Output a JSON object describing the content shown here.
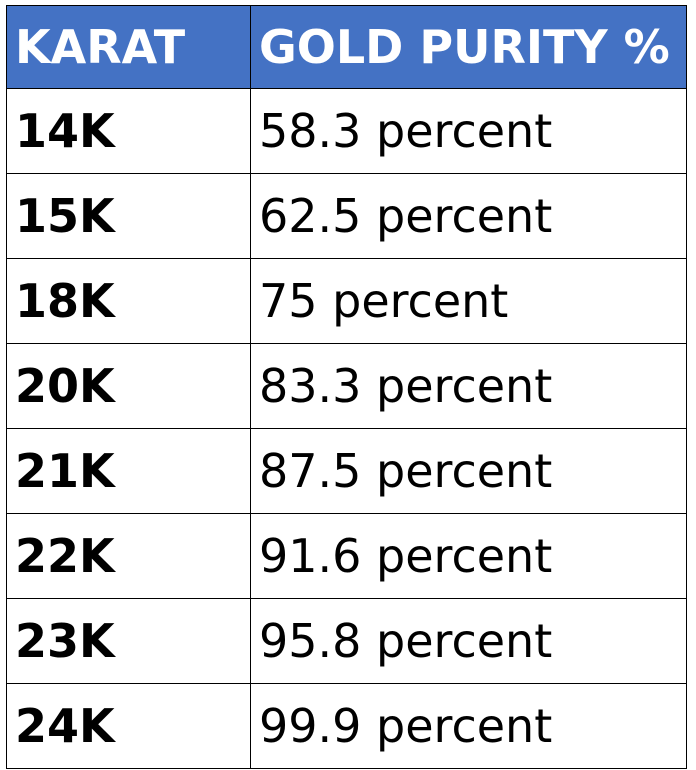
{
  "table": {
    "headers": [
      "KARAT",
      "GOLD PURITY %"
    ],
    "rows": [
      {
        "karat": "14K",
        "purity": "58.3 percent"
      },
      {
        "karat": "15K",
        "purity": "62.5 percent"
      },
      {
        "karat": "18K",
        "purity": "75 percent"
      },
      {
        "karat": "20K",
        "purity": "83.3 percent"
      },
      {
        "karat": "21K",
        "purity": "87.5 percent"
      },
      {
        "karat": "22K",
        "purity": "91.6 percent"
      },
      {
        "karat": "23K",
        "purity": "95.8 percent"
      },
      {
        "karat": "24K",
        "purity": "99.9 percent"
      }
    ]
  },
  "colors": {
    "header_background": "#4472c4",
    "header_text": "#ffffff",
    "body_text": "#000000",
    "border": "#000000"
  }
}
